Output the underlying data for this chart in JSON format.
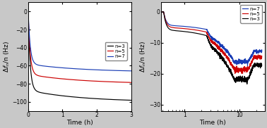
{
  "left": {
    "xlabel": "Time (h)",
    "ylabel": "Δf_n/n (Hz)",
    "xlim": [
      0,
      3
    ],
    "ylim": [
      -110,
      10
    ],
    "yticks": [
      0,
      -20,
      -40,
      -60,
      -80,
      -100
    ],
    "xticks": [
      0,
      1,
      2,
      3
    ],
    "finals": {
      "n3": -100,
      "n5": -80,
      "n7": -67
    },
    "start_val": 8
  },
  "right": {
    "xlabel": "Time (h)",
    "ylabel": "Δf_n/n (Hz)",
    "xlim": [
      0.38,
      28
    ],
    "ylim": [
      -32,
      3
    ],
    "yticks": [
      0,
      -10,
      -20,
      -30
    ]
  },
  "colors": {
    "n3": "#000000",
    "n5": "#cc0000",
    "n7": "#1a3db5"
  },
  "labels": {
    "n3": "n=3",
    "n5": "n=5",
    "n7": "n=7"
  },
  "bg_gray": "#c8c8c8",
  "plot_bg": "#ffffff",
  "linewidth": 0.85,
  "fontsize_label": 6.5,
  "fontsize_tick": 5.5,
  "fontsize_legend": 5.0
}
